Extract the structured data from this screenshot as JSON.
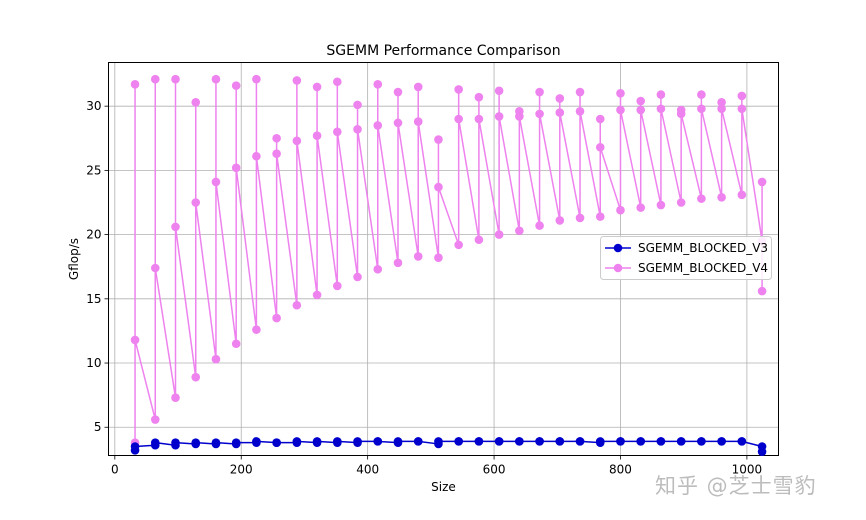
{
  "chart_data": {
    "type": "line",
    "title": "SGEMM Performance Comparison",
    "xlabel": "Size",
    "ylabel": "Gflop/s",
    "xlim": [
      -10,
      1050
    ],
    "ylim": [
      2.8,
      33.4
    ],
    "xticks": [
      0,
      200,
      400,
      600,
      800,
      1000
    ],
    "yticks": [
      5,
      10,
      15,
      20,
      25,
      30
    ],
    "grid": true,
    "legend_position": "center-right",
    "series": [
      {
        "name": "SGEMM_BLOCKED_V3",
        "color": "#0000cd",
        "points": [
          [
            32,
            3.2
          ],
          [
            32,
            3.5
          ],
          [
            64,
            3.6
          ],
          [
            64,
            3.8
          ],
          [
            96,
            3.6
          ],
          [
            96,
            3.8
          ],
          [
            128,
            3.7
          ],
          [
            128,
            3.8
          ],
          [
            160,
            3.7
          ],
          [
            160,
            3.8
          ],
          [
            192,
            3.7
          ],
          [
            192,
            3.8
          ],
          [
            224,
            3.8
          ],
          [
            224,
            3.9
          ],
          [
            256,
            3.8
          ],
          [
            256,
            3.8
          ],
          [
            288,
            3.8
          ],
          [
            288,
            3.9
          ],
          [
            320,
            3.8
          ],
          [
            320,
            3.9
          ],
          [
            352,
            3.8
          ],
          [
            352,
            3.9
          ],
          [
            384,
            3.8
          ],
          [
            384,
            3.9
          ],
          [
            416,
            3.9
          ],
          [
            416,
            3.9
          ],
          [
            448,
            3.8
          ],
          [
            448,
            3.9
          ],
          [
            480,
            3.9
          ],
          [
            480,
            3.9
          ],
          [
            512,
            3.7
          ],
          [
            512,
            3.9
          ],
          [
            544,
            3.9
          ],
          [
            544,
            3.9
          ],
          [
            576,
            3.9
          ],
          [
            576,
            3.9
          ],
          [
            608,
            3.9
          ],
          [
            608,
            3.9
          ],
          [
            640,
            3.9
          ],
          [
            640,
            3.9
          ],
          [
            672,
            3.9
          ],
          [
            672,
            3.9
          ],
          [
            704,
            3.9
          ],
          [
            704,
            3.9
          ],
          [
            736,
            3.9
          ],
          [
            736,
            3.9
          ],
          [
            768,
            3.8
          ],
          [
            768,
            3.9
          ],
          [
            800,
            3.9
          ],
          [
            800,
            3.9
          ],
          [
            832,
            3.9
          ],
          [
            832,
            3.9
          ],
          [
            864,
            3.9
          ],
          [
            864,
            3.9
          ],
          [
            896,
            3.9
          ],
          [
            896,
            3.9
          ],
          [
            928,
            3.9
          ],
          [
            928,
            3.9
          ],
          [
            960,
            3.9
          ],
          [
            960,
            3.9
          ],
          [
            992,
            3.9
          ],
          [
            992,
            3.9
          ],
          [
            1024,
            3.5
          ],
          [
            1024,
            3.1
          ]
        ]
      },
      {
        "name": "SGEMM_BLOCKED_V4",
        "color": "#ee82ee",
        "points": [
          [
            32,
            3.8
          ],
          [
            32,
            31.7
          ],
          [
            32,
            11.8
          ],
          [
            64,
            5.6
          ],
          [
            64,
            32.1
          ],
          [
            64,
            17.4
          ],
          [
            96,
            7.3
          ],
          [
            96,
            32.1
          ],
          [
            96,
            20.6
          ],
          [
            128,
            8.9
          ],
          [
            128,
            30.3
          ],
          [
            128,
            22.5
          ],
          [
            160,
            10.3
          ],
          [
            160,
            32.1
          ],
          [
            160,
            24.1
          ],
          [
            192,
            11.5
          ],
          [
            192,
            31.6
          ],
          [
            192,
            25.2
          ],
          [
            224,
            12.6
          ],
          [
            224,
            32.1
          ],
          [
            224,
            26.1
          ],
          [
            256,
            13.5
          ],
          [
            256,
            27.5
          ],
          [
            256,
            26.3
          ],
          [
            288,
            14.5
          ],
          [
            288,
            32.0
          ],
          [
            288,
            27.3
          ],
          [
            320,
            15.3
          ],
          [
            320,
            31.5
          ],
          [
            320,
            27.7
          ],
          [
            352,
            16.0
          ],
          [
            352,
            31.9
          ],
          [
            352,
            28.0
          ],
          [
            384,
            16.7
          ],
          [
            384,
            30.1
          ],
          [
            384,
            28.2
          ],
          [
            416,
            17.3
          ],
          [
            416,
            31.7
          ],
          [
            416,
            28.5
          ],
          [
            448,
            17.8
          ],
          [
            448,
            31.1
          ],
          [
            448,
            28.7
          ],
          [
            480,
            18.3
          ],
          [
            480,
            31.5
          ],
          [
            480,
            28.8
          ],
          [
            512,
            18.2
          ],
          [
            512,
            27.4
          ],
          [
            512,
            23.7
          ],
          [
            544,
            19.2
          ],
          [
            544,
            31.3
          ],
          [
            544,
            29.0
          ],
          [
            576,
            19.6
          ],
          [
            576,
            30.7
          ],
          [
            576,
            29.0
          ],
          [
            608,
            20.0
          ],
          [
            608,
            31.2
          ],
          [
            608,
            29.2
          ],
          [
            640,
            20.3
          ],
          [
            640,
            29.6
          ],
          [
            640,
            29.2
          ],
          [
            672,
            20.7
          ],
          [
            672,
            31.1
          ],
          [
            672,
            29.4
          ],
          [
            704,
            21.1
          ],
          [
            704,
            30.6
          ],
          [
            704,
            29.5
          ],
          [
            736,
            21.3
          ],
          [
            736,
            31.1
          ],
          [
            736,
            29.6
          ],
          [
            768,
            21.4
          ],
          [
            768,
            29.0
          ],
          [
            768,
            26.8
          ],
          [
            800,
            21.9
          ],
          [
            800,
            31.0
          ],
          [
            800,
            29.7
          ],
          [
            832,
            22.1
          ],
          [
            832,
            30.4
          ],
          [
            832,
            29.7
          ],
          [
            864,
            22.3
          ],
          [
            864,
            30.9
          ],
          [
            864,
            29.8
          ],
          [
            896,
            22.5
          ],
          [
            896,
            29.7
          ],
          [
            896,
            29.4
          ],
          [
            928,
            22.8
          ],
          [
            928,
            30.9
          ],
          [
            928,
            29.8
          ],
          [
            960,
            22.9
          ],
          [
            960,
            30.3
          ],
          [
            960,
            29.8
          ],
          [
            992,
            23.1
          ],
          [
            992,
            30.8
          ],
          [
            992,
            29.8
          ],
          [
            1024,
            19.5
          ],
          [
            1024,
            24.1
          ],
          [
            1024,
            15.6
          ]
        ]
      }
    ]
  },
  "watermark": "知乎 @芝士雪豹"
}
